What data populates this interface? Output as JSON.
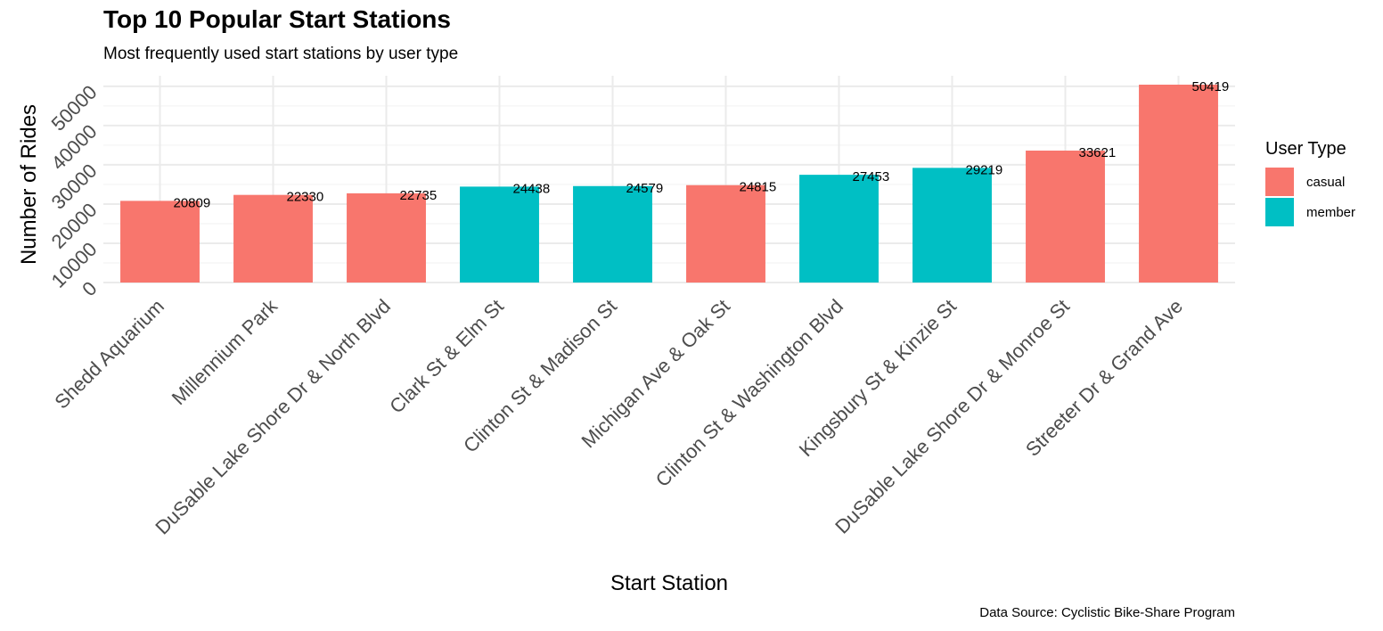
{
  "title": "Top 10 Popular Start Stations",
  "subtitle": "Most frequently used start stations by user type",
  "caption": "Data Source: Cyclistic Bike-Share Program",
  "legend": {
    "title": "User Type",
    "items": [
      {
        "label": "casual",
        "color": "#F8766D"
      },
      {
        "label": "member",
        "color": "#00BFC4"
      }
    ]
  },
  "chart_data": {
    "type": "bar",
    "title": "Top 10 Popular Start Stations",
    "subtitle": "Most frequently used start stations by user type",
    "xlabel": "Start Station",
    "ylabel": "Number of Rides",
    "ylim": [
      0,
      50419
    ],
    "yticks": [
      0,
      10000,
      20000,
      30000,
      40000,
      50000
    ],
    "grid": true,
    "legend_position": "right",
    "categories": [
      "Shedd Aquarium",
      "Millennium Park",
      "DuSable Lake Shore Dr & North Blvd",
      "Clark St & Elm St",
      "Clinton St & Madison St",
      "Michigan Ave & Oak St",
      "Clinton St & Washington Blvd",
      "Kingsbury St & Kinzie St",
      "DuSable Lake Shore Dr & Monroe St",
      "Streeter Dr & Grand Ave"
    ],
    "values": [
      20809,
      22330,
      22735,
      24438,
      24579,
      24815,
      27453,
      29219,
      33621,
      50419
    ],
    "user_type": [
      "casual",
      "casual",
      "casual",
      "member",
      "member",
      "casual",
      "member",
      "member",
      "casual",
      "casual"
    ],
    "colors": {
      "casual": "#F8766D",
      "member": "#00BFC4"
    }
  }
}
